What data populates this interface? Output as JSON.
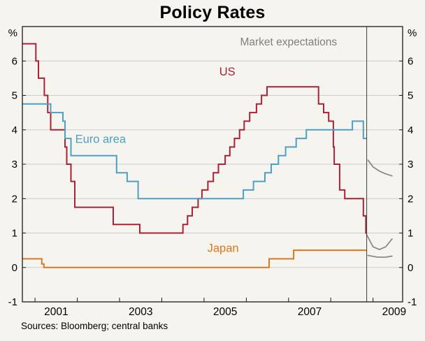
{
  "footer": {
    "sources": "Sources: Bloomberg; central banks"
  },
  "chart_data": {
    "type": "line",
    "title": "Policy Rates",
    "unit_label": "%",
    "x_range": [
      2000.7,
      2009.7
    ],
    "y_range": [
      -1,
      7
    ],
    "y_ticks": [
      -1,
      0,
      1,
      2,
      3,
      4,
      5,
      6
    ],
    "gridline_values": [
      0,
      1,
      2,
      3,
      4,
      5,
      6
    ],
    "x_year_ticks": [
      2001,
      2002,
      2003,
      2004,
      2005,
      2006,
      2007,
      2008,
      2009
    ],
    "x_labels": [
      {
        "label": "2001",
        "x": 2001.5
      },
      {
        "label": "2003",
        "x": 2003.5
      },
      {
        "label": "2005",
        "x": 2005.5
      },
      {
        "label": "2007",
        "x": 2007.5
      },
      {
        "label": "2009",
        "x": 2009.5
      }
    ],
    "vertical_line_x": 2008.85,
    "annotation": {
      "text": "Market expectations",
      "x": 2007.0,
      "y": 6.45,
      "color": "#7f7f7f"
    },
    "colors": {
      "grid": "#cbcbcb",
      "frame": "#1a1a1a",
      "vertical_line": "#3c3c3c",
      "expectations": "#8a8a8a"
    },
    "series": [
      {
        "id": "us",
        "label": "US",
        "color": "#A82336",
        "style": "step",
        "label_x": 2005.55,
        "label_y": 5.58,
        "points": [
          [
            2000.7,
            6.5
          ],
          [
            2001.02,
            6.0
          ],
          [
            2001.08,
            5.5
          ],
          [
            2001.22,
            5.0
          ],
          [
            2001.3,
            4.5
          ],
          [
            2001.37,
            4.0
          ],
          [
            2001.71,
            3.5
          ],
          [
            2001.75,
            3.0
          ],
          [
            2001.85,
            2.5
          ],
          [
            2001.94,
            1.75
          ],
          [
            2002.85,
            1.25
          ],
          [
            2003.48,
            1.0
          ],
          [
            2004.5,
            1.25
          ],
          [
            2004.61,
            1.5
          ],
          [
            2004.72,
            1.75
          ],
          [
            2004.86,
            2.0
          ],
          [
            2004.95,
            2.25
          ],
          [
            2005.09,
            2.5
          ],
          [
            2005.22,
            2.75
          ],
          [
            2005.34,
            3.0
          ],
          [
            2005.5,
            3.25
          ],
          [
            2005.61,
            3.5
          ],
          [
            2005.72,
            3.75
          ],
          [
            2005.84,
            4.0
          ],
          [
            2005.95,
            4.25
          ],
          [
            2006.08,
            4.5
          ],
          [
            2006.24,
            4.75
          ],
          [
            2006.36,
            5.0
          ],
          [
            2006.49,
            5.25
          ],
          [
            2007.71,
            4.75
          ],
          [
            2007.83,
            4.5
          ],
          [
            2007.95,
            4.25
          ],
          [
            2008.06,
            3.5
          ],
          [
            2008.08,
            3.0
          ],
          [
            2008.21,
            2.25
          ],
          [
            2008.33,
            2.0
          ],
          [
            2008.77,
            1.5
          ],
          [
            2008.83,
            1.0
          ],
          [
            2008.85,
            1.0
          ]
        ]
      },
      {
        "id": "euro-area",
        "label": "Euro area",
        "color": "#4E9FC4",
        "style": "step",
        "label_x": 2002.55,
        "label_y": 3.62,
        "points": [
          [
            2000.7,
            4.75
          ],
          [
            2001.37,
            4.5
          ],
          [
            2001.66,
            4.25
          ],
          [
            2001.71,
            3.75
          ],
          [
            2001.85,
            3.25
          ],
          [
            2002.93,
            2.75
          ],
          [
            2003.18,
            2.5
          ],
          [
            2003.44,
            2.0
          ],
          [
            2005.93,
            2.25
          ],
          [
            2006.17,
            2.5
          ],
          [
            2006.44,
            2.75
          ],
          [
            2006.59,
            3.0
          ],
          [
            2006.76,
            3.25
          ],
          [
            2006.93,
            3.5
          ],
          [
            2007.18,
            3.75
          ],
          [
            2007.42,
            4.0
          ],
          [
            2008.51,
            4.25
          ],
          [
            2008.77,
            3.75
          ],
          [
            2008.85,
            3.75
          ]
        ]
      },
      {
        "id": "japan",
        "label": "Japan",
        "color": "#E0761C",
        "style": "step",
        "label_x": 2005.45,
        "label_y": 0.45,
        "points": [
          [
            2000.7,
            0.25
          ],
          [
            2001.16,
            0.1
          ],
          [
            2001.21,
            0.0
          ],
          [
            2006.54,
            0.25
          ],
          [
            2007.12,
            0.5
          ],
          [
            2008.85,
            0.5
          ]
        ]
      }
    ],
    "expectation_series": [
      {
        "id": "us-expectations",
        "points": [
          [
            2008.85,
            0.95
          ],
          [
            2009.0,
            0.6
          ],
          [
            2009.15,
            0.52
          ],
          [
            2009.3,
            0.6
          ],
          [
            2009.45,
            0.83
          ]
        ]
      },
      {
        "id": "euro-area-expectations",
        "points": [
          [
            2008.88,
            3.12
          ],
          [
            2009.0,
            2.92
          ],
          [
            2009.15,
            2.8
          ],
          [
            2009.3,
            2.72
          ],
          [
            2009.45,
            2.66
          ]
        ]
      },
      {
        "id": "japan-expectations",
        "points": [
          [
            2008.88,
            0.35
          ],
          [
            2009.1,
            0.3
          ],
          [
            2009.3,
            0.3
          ],
          [
            2009.45,
            0.33
          ]
        ]
      }
    ]
  }
}
